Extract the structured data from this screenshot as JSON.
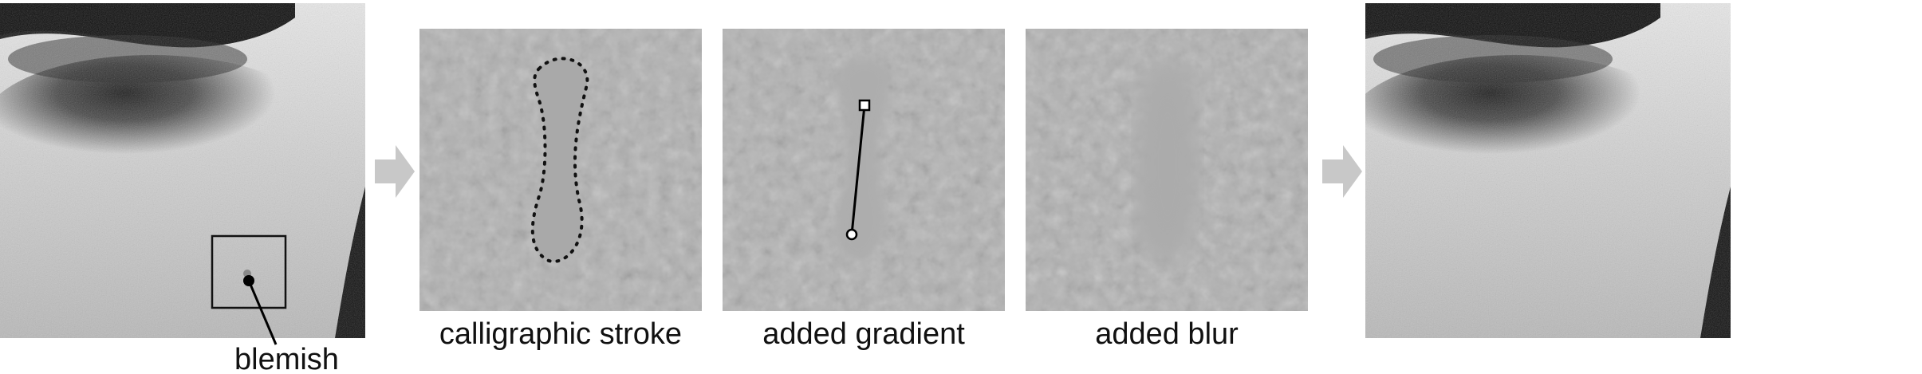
{
  "figure": {
    "labels": {
      "blemish": "blemish",
      "step1": "calligraphic stroke",
      "step2": "added gradient",
      "step3": "added blur"
    },
    "panels": {
      "input": "before-face-photo",
      "step1": "skin-patch-with-dotted-outline",
      "step2": "skin-patch-with-gradient-handle",
      "step3": "skin-patch-blurred",
      "output": "after-face-photo"
    },
    "icons": {
      "arrow": "right-arrow-icon",
      "gradient_start": "square-handle-icon",
      "gradient_end": "circle-handle-icon"
    },
    "colors": {
      "arrow": "#c8c8c8",
      "skin_patch": "#b2b2b2",
      "stroke_fill": "#a9a9a9",
      "outline": "#111111"
    }
  }
}
